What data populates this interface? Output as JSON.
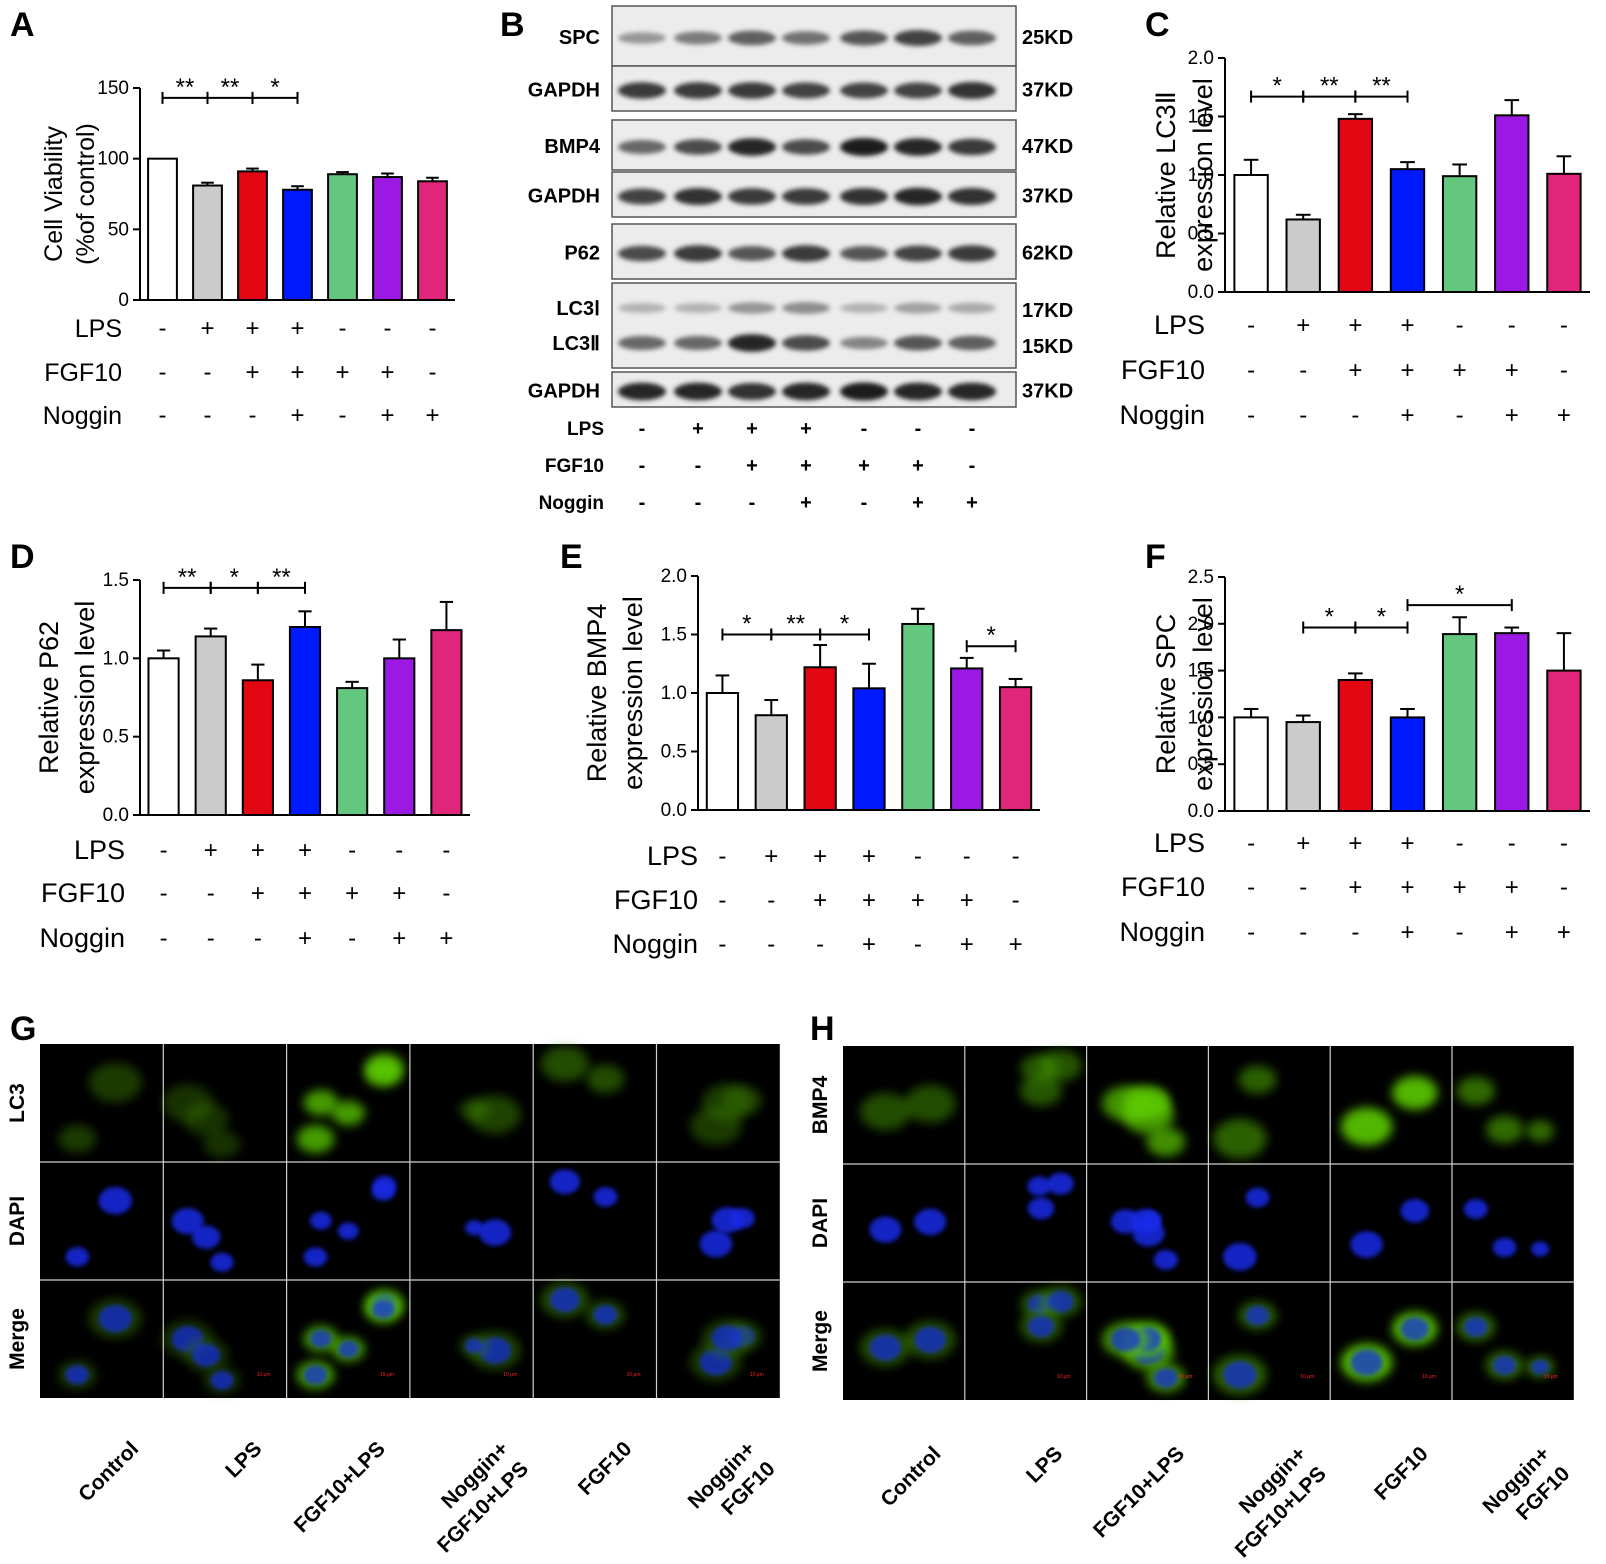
{
  "treatment_rows": {
    "LPS": [
      "-",
      "+",
      "+",
      "+",
      "-",
      "-",
      "-"
    ],
    "FGF10": [
      "-",
      "-",
      "+",
      "+",
      "+",
      "+",
      "-"
    ],
    "Noggin": [
      "-",
      "-",
      "-",
      "+",
      "-",
      "+",
      "+"
    ]
  },
  "treatment_names": [
    "LPS",
    "FGF10",
    "Noggin"
  ],
  "bar_colors": [
    "#ffffff",
    "#cccccc",
    "#e30613",
    "#0019ff",
    "#63c77f",
    "#9b19e3",
    "#e0257a"
  ],
  "chart_data": [
    {
      "panel": "A",
      "type": "bar",
      "ylabel": [
        "Cell Viability",
        "(%of control)"
      ],
      "ylim": [
        0,
        150
      ],
      "yticks": [
        0,
        50,
        100,
        150
      ],
      "ytick_labels": [
        "0",
        "50",
        "100",
        "150"
      ],
      "values": [
        100,
        81,
        91,
        78,
        89,
        87,
        84
      ],
      "errors": [
        0,
        2,
        2,
        2.5,
        1.5,
        2.5,
        2.5
      ],
      "significance": [
        {
          "from": 0,
          "to": 1,
          "label": "**",
          "level": 143
        },
        {
          "from": 1,
          "to": 2,
          "label": "**",
          "level": 143
        },
        {
          "from": 2,
          "to": 3,
          "label": "*",
          "level": 143
        }
      ]
    },
    {
      "panel": "C",
      "type": "bar",
      "ylabel": [
        "Relative LC3Ⅱ",
        "expression level"
      ],
      "ylim": [
        0,
        2.0
      ],
      "yticks": [
        0,
        0.5,
        1.0,
        1.5,
        2.0
      ],
      "ytick_labels": [
        "0.0",
        "0.5",
        "1.0",
        "1.5",
        "2.0"
      ],
      "values": [
        1.0,
        0.62,
        1.48,
        1.05,
        0.99,
        1.51,
        1.01
      ],
      "errors": [
        0.13,
        0.04,
        0.04,
        0.06,
        0.1,
        0.13,
        0.15
      ],
      "significance": [
        {
          "from": 0,
          "to": 1,
          "label": "*",
          "level": 1.67
        },
        {
          "from": 1,
          "to": 2,
          "label": "**",
          "level": 1.67
        },
        {
          "from": 2,
          "to": 3,
          "label": "**",
          "level": 1.67
        }
      ]
    },
    {
      "panel": "D",
      "type": "bar",
      "ylabel": [
        "Relative P62",
        "expression level"
      ],
      "ylim": [
        0,
        1.5
      ],
      "yticks": [
        0,
        0.5,
        1.0,
        1.5
      ],
      "ytick_labels": [
        "0.0",
        "0.5",
        "1.0",
        "1.5"
      ],
      "values": [
        1.0,
        1.14,
        0.86,
        1.2,
        0.81,
        1.0,
        1.18
      ],
      "errors": [
        0.05,
        0.05,
        0.1,
        0.1,
        0.04,
        0.12,
        0.18
      ],
      "significance": [
        {
          "from": 0,
          "to": 1,
          "label": "**",
          "level": 1.45
        },
        {
          "from": 1,
          "to": 2,
          "label": "*",
          "level": 1.45
        },
        {
          "from": 2,
          "to": 3,
          "label": "**",
          "level": 1.45
        }
      ]
    },
    {
      "panel": "E",
      "type": "bar",
      "ylabel": [
        "Relative BMP4",
        "expression level"
      ],
      "ylim": [
        0,
        2.0
      ],
      "yticks": [
        0,
        0.5,
        1.0,
        1.5,
        2.0
      ],
      "ytick_labels": [
        "0.0",
        "0.5",
        "1.0",
        "1.5",
        "2.0"
      ],
      "values": [
        1.0,
        0.81,
        1.22,
        1.04,
        1.59,
        1.21,
        1.05
      ],
      "errors": [
        0.15,
        0.13,
        0.19,
        0.21,
        0.13,
        0.09,
        0.07
      ],
      "significance": [
        {
          "from": 0,
          "to": 1,
          "label": "*",
          "level": 1.5
        },
        {
          "from": 1,
          "to": 2,
          "label": "**",
          "level": 1.5
        },
        {
          "from": 2,
          "to": 3,
          "label": "*",
          "level": 1.5
        },
        {
          "from": 5,
          "to": 6,
          "label": "*",
          "level": 1.4
        }
      ]
    },
    {
      "panel": "F",
      "type": "bar",
      "ylabel": [
        "Relative SPC",
        "expression level"
      ],
      "ylim": [
        0,
        2.5
      ],
      "yticks": [
        0,
        0.5,
        1.0,
        1.5,
        2.0,
        2.5
      ],
      "ytick_labels": [
        "0.0",
        "0.5",
        "1.0",
        "1.5",
        "2.0",
        "2.5"
      ],
      "values": [
        1.0,
        0.95,
        1.4,
        1.0,
        1.89,
        1.9,
        1.5
      ],
      "errors": [
        0.09,
        0.07,
        0.07,
        0.09,
        0.18,
        0.06,
        0.4
      ],
      "significance": [
        {
          "from": 1,
          "to": 2,
          "label": "*",
          "level": 1.96
        },
        {
          "from": 2,
          "to": 3,
          "label": "*",
          "level": 1.96
        },
        {
          "from": 3,
          "to": 5,
          "label": "*",
          "level": 2.2
        }
      ]
    }
  ],
  "blot_panel": {
    "label": "B",
    "rows": [
      {
        "protein": "SPC",
        "kd": "25KD",
        "intensity": [
          0.35,
          0.5,
          0.65,
          0.55,
          0.7,
          0.8,
          0.65
        ]
      },
      {
        "protein": "GAPDH",
        "kd": "37KD",
        "intensity": [
          0.85,
          0.85,
          0.85,
          0.8,
          0.8,
          0.8,
          0.9
        ]
      },
      {
        "protein": "BMP4",
        "kd": "47KD",
        "intensity": [
          0.6,
          0.75,
          0.95,
          0.75,
          1.0,
          0.95,
          0.85
        ]
      },
      {
        "protein": "GAPDH",
        "kd": "37KD",
        "intensity": [
          0.8,
          0.9,
          0.85,
          0.85,
          0.9,
          0.95,
          0.9
        ]
      },
      {
        "protein": "P62",
        "kd": "62KD",
        "intensity": [
          0.75,
          0.85,
          0.7,
          0.85,
          0.7,
          0.8,
          0.85
        ]
      },
      {
        "protein": "LC3Ⅰ",
        "kd": "17KD",
        "protein2": "LC3Ⅱ",
        "kd2": "15KD",
        "intensity": [
          0.2,
          0.2,
          0.35,
          0.4,
          0.2,
          0.3,
          0.25
        ],
        "intensity2": [
          0.6,
          0.6,
          0.95,
          0.75,
          0.45,
          0.7,
          0.65
        ]
      },
      {
        "protein": "GAPDH",
        "kd": "37KD",
        "intensity": [
          0.95,
          0.95,
          0.9,
          0.95,
          1.0,
          0.95,
          0.95
        ]
      }
    ]
  },
  "panel_labels": [
    "A",
    "B",
    "C",
    "D",
    "E",
    "F",
    "G",
    "H"
  ],
  "micrograph_panels": [
    {
      "label": "G",
      "row_labels": [
        "LC3",
        "DAPI",
        "Merge"
      ],
      "col_labels": [
        [
          "Control"
        ],
        [
          "LPS"
        ],
        [
          "FGF10+LPS"
        ],
        [
          "Noggin+",
          "FGF10+LPS"
        ],
        [
          "FGF10"
        ],
        [
          "Noggin+",
          "FGF10"
        ]
      ],
      "scale_bar": "10 μm",
      "green_brightness": [
        0.35,
        0.3,
        0.8,
        0.4,
        0.45,
        0.35
      ]
    },
    {
      "label": "H",
      "row_labels": [
        "BMP4",
        "DAPI",
        "Merge"
      ],
      "col_labels": [
        [
          "Control"
        ],
        [
          "LPS"
        ],
        [
          "FGF10+LPS"
        ],
        [
          "Noggin+",
          "FGF10+LPS"
        ],
        [
          "FGF10"
        ],
        [
          "Noggin+",
          "FGF10"
        ]
      ],
      "scale_bar": "10 μm",
      "green_brightness": [
        0.45,
        0.5,
        0.75,
        0.55,
        0.9,
        0.6
      ]
    }
  ]
}
